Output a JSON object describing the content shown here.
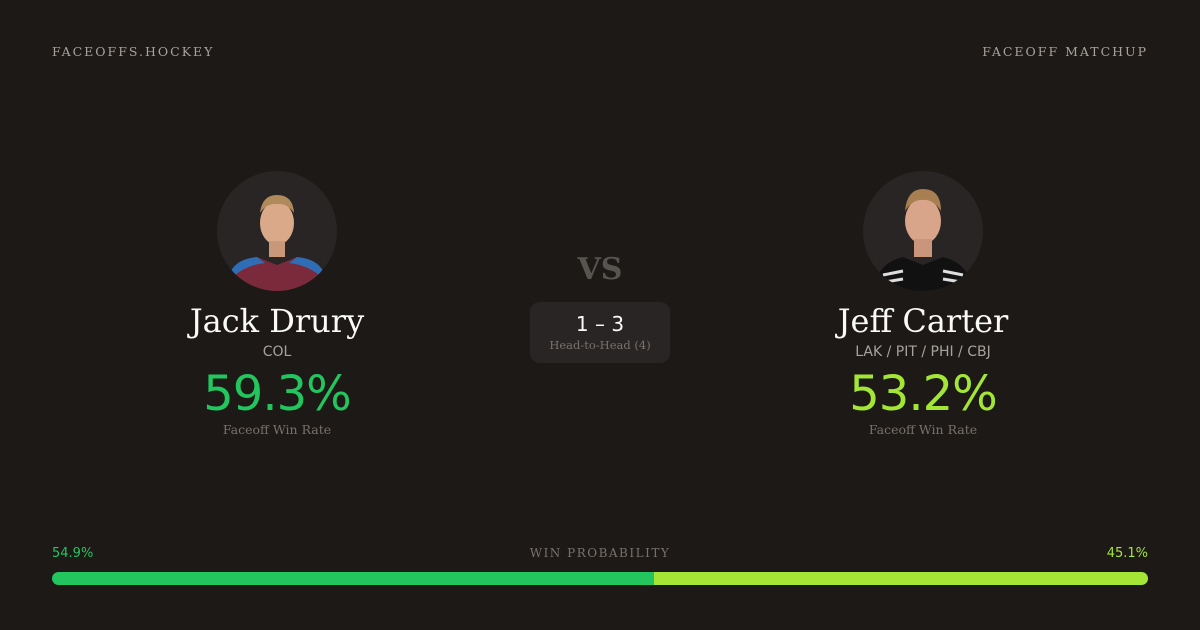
{
  "header": {
    "brand": "FACEOFFS.HOCKEY",
    "title": "FACEOFF MATCHUP"
  },
  "left": {
    "name": "Jack Drury",
    "team": "COL",
    "win_rate": "59.3%",
    "win_rate_label": "Faceoff Win Rate",
    "color": "#22c55e",
    "jersey": "#7a2a3a",
    "jersey_accent": "#2f6db5"
  },
  "right": {
    "name": "Jeff Carter",
    "team": "LAK / PIT / PHI / CBJ",
    "win_rate": "53.2%",
    "win_rate_label": "Faceoff Win Rate",
    "color": "#a3e635",
    "jersey": "#111111",
    "jersey_accent": "#e5e5e5"
  },
  "vs": "VS",
  "head_to_head": {
    "score": "1 – 3",
    "label": "Head-to-Head (4)"
  },
  "win_probability": {
    "label": "WIN PROBABILITY",
    "left_text": "54.9%",
    "right_text": "45.1%",
    "left": 54.9,
    "right": 45.1
  }
}
